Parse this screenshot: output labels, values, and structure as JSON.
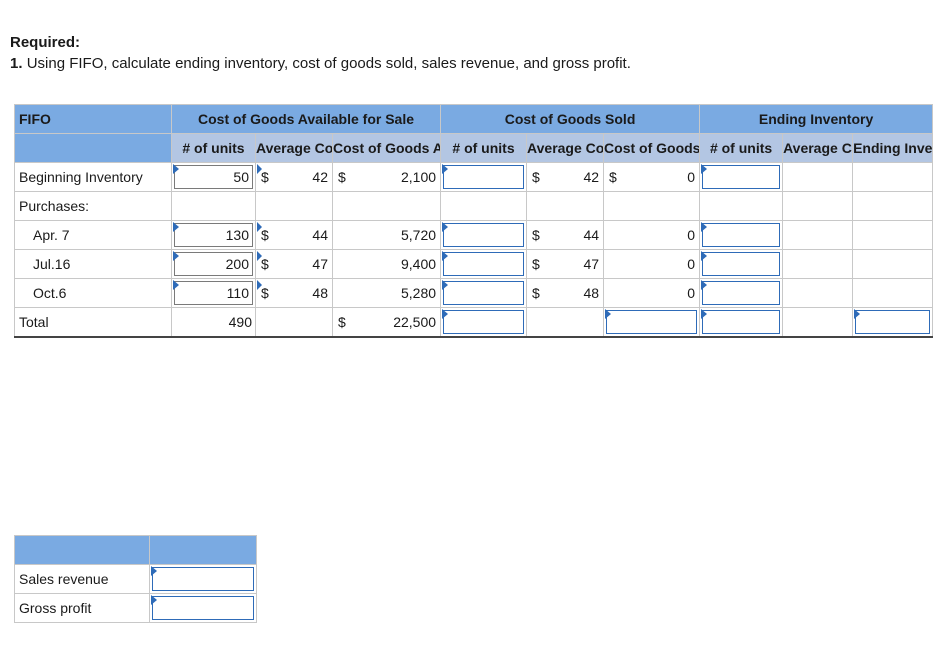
{
  "required": {
    "title": "Required:",
    "number": "1.",
    "instruction": "Using FIFO, calculate ending inventory, cost of goods sold, sales revenue, and gross profit."
  },
  "table": {
    "corner_label": "FIFO",
    "groups": {
      "available": "Cost of Goods Available for Sale",
      "cogs": "Cost of Goods Sold",
      "ending": "Ending Inventory"
    },
    "subheaders": {
      "units": "# of units",
      "avg_cost": "Average Cost per unit",
      "cost_available": "Cost of Goods Available for Sale",
      "cogs_units": "# of units",
      "cogs_avg": "Average Cost per unit",
      "cogs_cost": "Cost of Goods Sold",
      "end_units": "# of units",
      "end_avg": "Average Cost per unit",
      "end_total": "Ending Inventory"
    },
    "currency": "$",
    "rows": {
      "beginning": {
        "label": "Beginning Inventory",
        "units": "50",
        "cost": "42",
        "total": "2,100",
        "cogs_cost_per": "42",
        "cogs_total": "0"
      },
      "purchases": {
        "label": "Purchases:"
      },
      "apr": {
        "label": "Apr. 7",
        "units": "130",
        "cost": "44",
        "total": "5,720",
        "cogs_cost_per": "44",
        "cogs_total": "0"
      },
      "jul": {
        "label": "Jul.16",
        "units": "200",
        "cost": "47",
        "total": "9,400",
        "cogs_cost_per": "47",
        "cogs_total": "0"
      },
      "oct": {
        "label": "Oct.6",
        "units": "110",
        "cost": "48",
        "total": "5,280",
        "cogs_cost_per": "48",
        "cogs_total": "0"
      },
      "total": {
        "label": "Total",
        "units": "490",
        "total": "22,500"
      }
    }
  },
  "summary": {
    "sales_revenue_label": "Sales revenue",
    "gross_profit_label": "Gross profit"
  }
}
